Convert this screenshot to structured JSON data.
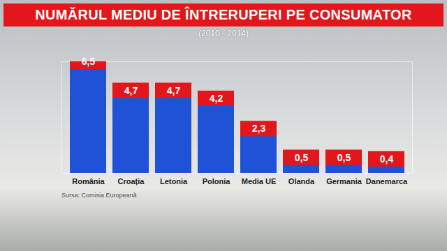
{
  "chart_data": {
    "type": "bar",
    "title": "NUMĂRUL MEDIU DE ÎNTRERUPERI PE CONSUMATOR",
    "subtitle": "(2010 - 2014)",
    "source": "Sursa: Comisia Europeană",
    "categories": [
      "România",
      "Croația",
      "Letonia",
      "Polonia",
      "Media UE",
      "Olanda",
      "Germania",
      "Danemarca"
    ],
    "values": [
      6.5,
      4.7,
      4.7,
      4.2,
      2.3,
      0.5,
      0.5,
      0.4
    ],
    "value_labels": [
      "6,5",
      "4,7",
      "4,7",
      "4,2",
      "2,3",
      "0,5",
      "0,5",
      "0,4"
    ],
    "color": "#1f52d6",
    "ylim": [
      0,
      7
    ],
    "data_labels": true,
    "tick_labels": "x",
    "grid": false
  }
}
